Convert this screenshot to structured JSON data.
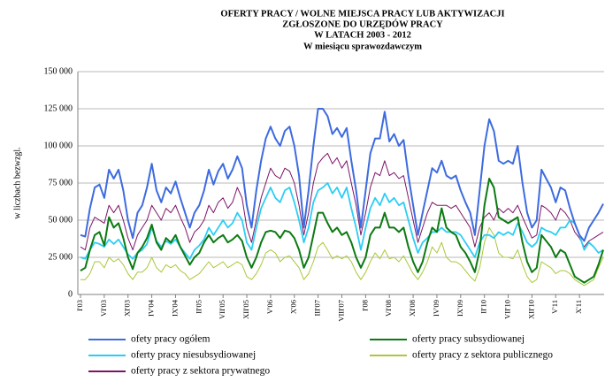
{
  "chart_data": {
    "type": "line",
    "title": [
      "OFERTY PRACY / WOLNE MIEJSCA PRACY LUB AKTYWIZACJI",
      "ZGŁOSZONE DO URZĘDÓW PRACY",
      "W LATACH 2003 - 2012"
    ],
    "subtitle": "W miesiącu sprawozdawczym",
    "y_label": "w liczbach bezwzgl.",
    "categories": [
      "I'03",
      null,
      null,
      null,
      null,
      "VI'03",
      null,
      null,
      null,
      null,
      "XI'03",
      null,
      null,
      null,
      null,
      "IV'04",
      null,
      null,
      null,
      null,
      "IX'04",
      null,
      null,
      null,
      null,
      "II'05",
      null,
      null,
      null,
      null,
      "VII'05",
      null,
      null,
      null,
      null,
      "XII'05",
      null,
      null,
      null,
      null,
      "V'06",
      null,
      null,
      null,
      null,
      "X'06",
      null,
      null,
      null,
      null,
      "III'07",
      null,
      null,
      null,
      null,
      "VIII'07",
      null,
      null,
      null,
      null,
      "I'08",
      null,
      null,
      null,
      null,
      "VI'08",
      null,
      null,
      null,
      null,
      "XI'08",
      null,
      null,
      null,
      null,
      "IV'09",
      null,
      null,
      null,
      null,
      "IX'09",
      null,
      null,
      null,
      null,
      "II'10",
      null,
      null,
      null,
      null,
      "VII'10",
      null,
      null,
      null,
      null,
      "XII'10",
      null,
      null,
      null,
      null,
      "V'11",
      null,
      null,
      null,
      null,
      "X'11",
      null,
      null,
      null,
      null,
      null
    ],
    "ylim": [
      0,
      150000
    ],
    "yticks": [
      0,
      {
        "value": 25000,
        "label": "25 000"
      },
      {
        "value": 50000,
        "label": "50 000"
      },
      {
        "value": 75000,
        "label": "75 000"
      },
      {
        "value": 100000,
        "label": "100 000"
      },
      {
        "value": 125000,
        "label": "125 000"
      },
      {
        "value": 150000,
        "label": "150 000"
      }
    ],
    "grid": true,
    "legend": "bottom",
    "series": [
      {
        "name": "ofety pracy ogółem",
        "color": "#3d6be0",
        "values": [
          40000,
          39000,
          58000,
          72000,
          74000,
          65000,
          84000,
          78000,
          84000,
          70000,
          50000,
          38000,
          55000,
          60000,
          72000,
          88000,
          70000,
          62000,
          72000,
          68000,
          76000,
          65000,
          55000,
          45000,
          55000,
          60000,
          70000,
          84000,
          74000,
          83000,
          88000,
          78000,
          84000,
          93000,
          85000,
          60000,
          45000,
          70000,
          90000,
          105000,
          113000,
          105000,
          100000,
          110000,
          113000,
          100000,
          80000,
          45000,
          70000,
          100000,
          125000,
          125000,
          120000,
          108000,
          112000,
          106000,
          112000,
          90000,
          70000,
          45000,
          70000,
          95000,
          105000,
          105000,
          123000,
          103000,
          108000,
          100000,
          104000,
          80000,
          60000,
          40000,
          55000,
          70000,
          85000,
          82000,
          90000,
          80000,
          78000,
          80000,
          70000,
          62000,
          55000,
          40000,
          70000,
          100000,
          118000,
          110000,
          90000,
          88000,
          90000,
          88000,
          100000,
          75000,
          55000,
          45000,
          50000,
          84000,
          78000,
          72000,
          62000,
          72000,
          70000,
          58000,
          48000,
          40000,
          36000,
          45000,
          50000,
          55000,
          61000
        ]
      },
      {
        "name": "oferty pracy subsydiowanej",
        "color": "#0b7a12",
        "values": [
          16000,
          18000,
          30000,
          40000,
          42000,
          33000,
          52000,
          45000,
          48000,
          38000,
          25000,
          17000,
          28000,
          32000,
          38000,
          47000,
          35000,
          30000,
          38000,
          35000,
          40000,
          32000,
          26000,
          20000,
          25000,
          28000,
          35000,
          40000,
          35000,
          38000,
          40000,
          35000,
          37000,
          40000,
          36000,
          25000,
          18000,
          25000,
          35000,
          42000,
          43000,
          42000,
          38000,
          43000,
          42000,
          38000,
          30000,
          18000,
          25000,
          40000,
          55000,
          55000,
          48000,
          42000,
          45000,
          40000,
          42000,
          35000,
          25000,
          18000,
          25000,
          40000,
          45000,
          45000,
          55000,
          45000,
          45000,
          42000,
          45000,
          32000,
          22000,
          15000,
          22000,
          35000,
          45000,
          42000,
          58000,
          45000,
          42000,
          40000,
          32000,
          28000,
          22000,
          15000,
          30000,
          60000,
          78000,
          72000,
          52000,
          50000,
          48000,
          50000,
          52000,
          35000,
          22000,
          15000,
          18000,
          40000,
          36000,
          32000,
          25000,
          30000,
          28000,
          20000,
          12000,
          10000,
          8000,
          10000,
          12000,
          20000,
          30000
        ]
      },
      {
        "name": "oferty pracy niesubsydiowanej",
        "color": "#2ccdf5",
        "values": [
          25000,
          24000,
          30000,
          35000,
          34000,
          32000,
          37000,
          34000,
          37000,
          32000,
          27000,
          24000,
          28000,
          30000,
          34000,
          45000,
          36000,
          32000,
          36000,
          34000,
          37000,
          32000,
          28000,
          24000,
          30000,
          33000,
          37000,
          45000,
          40000,
          45000,
          50000,
          45000,
          48000,
          55000,
          50000,
          35000,
          30000,
          45000,
          58000,
          65000,
          72000,
          65000,
          62000,
          70000,
          72000,
          62000,
          50000,
          35000,
          45000,
          62000,
          70000,
          72000,
          75000,
          68000,
          72000,
          65000,
          72000,
          58000,
          45000,
          30000,
          45000,
          58000,
          65000,
          60000,
          68000,
          62000,
          65000,
          60000,
          62000,
          50000,
          38000,
          28000,
          35000,
          38000,
          42000,
          42000,
          45000,
          42000,
          42000,
          42000,
          40000,
          35000,
          30000,
          25000,
          35000,
          40000,
          40000,
          38000,
          42000,
          40000,
          42000,
          40000,
          48000,
          42000,
          35000,
          32000,
          35000,
          45000,
          43000,
          42000,
          40000,
          45000,
          45000,
          50000,
          48000,
          40000,
          30000,
          35000,
          32000,
          28000,
          30000
        ]
      },
      {
        "name": "oferty pracy z sektora publicznego",
        "color": "#a9c83a",
        "values": [
          10000,
          10000,
          14000,
          22000,
          22000,
          18000,
          25000,
          22000,
          24000,
          20000,
          14000,
          10000,
          15000,
          15000,
          18000,
          25000,
          18000,
          15000,
          20000,
          18000,
          20000,
          16000,
          14000,
          10000,
          12000,
          14000,
          18000,
          22000,
          18000,
          20000,
          22000,
          18000,
          20000,
          22000,
          20000,
          12000,
          10000,
          14000,
          20000,
          28000,
          30000,
          28000,
          22000,
          25000,
          26000,
          22000,
          18000,
          10000,
          14000,
          22000,
          32000,
          35000,
          30000,
          24000,
          26000,
          24000,
          26000,
          22000,
          15000,
          10000,
          15000,
          22000,
          28000,
          24000,
          30000,
          24000,
          25000,
          22000,
          26000,
          20000,
          14000,
          10000,
          15000,
          22000,
          32000,
          28000,
          35000,
          25000,
          22000,
          22000,
          20000,
          16000,
          12000,
          9000,
          18000,
          35000,
          45000,
          40000,
          28000,
          25000,
          25000,
          24000,
          30000,
          20000,
          12000,
          8000,
          10000,
          22000,
          20000,
          18000,
          14000,
          16000,
          16000,
          14000,
          10000,
          8000,
          6000,
          8000,
          10000,
          18000,
          25000
        ]
      },
      {
        "name": "oferty pracy z sektora prywatnego",
        "color": "#7d1466",
        "values": [
          32000,
          30000,
          45000,
          52000,
          50000,
          48000,
          60000,
          55000,
          60000,
          50000,
          38000,
          30000,
          40000,
          45000,
          50000,
          60000,
          55000,
          50000,
          58000,
          55000,
          60000,
          52000,
          45000,
          35000,
          42000,
          45000,
          50000,
          60000,
          55000,
          62000,
          65000,
          58000,
          62000,
          72000,
          65000,
          45000,
          35000,
          50000,
          65000,
          75000,
          85000,
          80000,
          78000,
          85000,
          83000,
          75000,
          60000,
          40000,
          55000,
          75000,
          88000,
          92000,
          95000,
          88000,
          92000,
          85000,
          90000,
          75000,
          60000,
          40000,
          55000,
          72000,
          82000,
          80000,
          90000,
          80000,
          82000,
          78000,
          80000,
          65000,
          50000,
          35000,
          45000,
          55000,
          62000,
          60000,
          60000,
          60000,
          58000,
          60000,
          55000,
          50000,
          45000,
          32000,
          45000,
          52000,
          55000,
          50000,
          58000,
          55000,
          58000,
          55000,
          60000,
          52000,
          45000,
          38000,
          40000,
          60000,
          58000,
          55000,
          50000,
          58000,
          55000,
          50000,
          42000,
          38000,
          32000,
          36000,
          38000,
          40000,
          42000
        ]
      }
    ]
  }
}
